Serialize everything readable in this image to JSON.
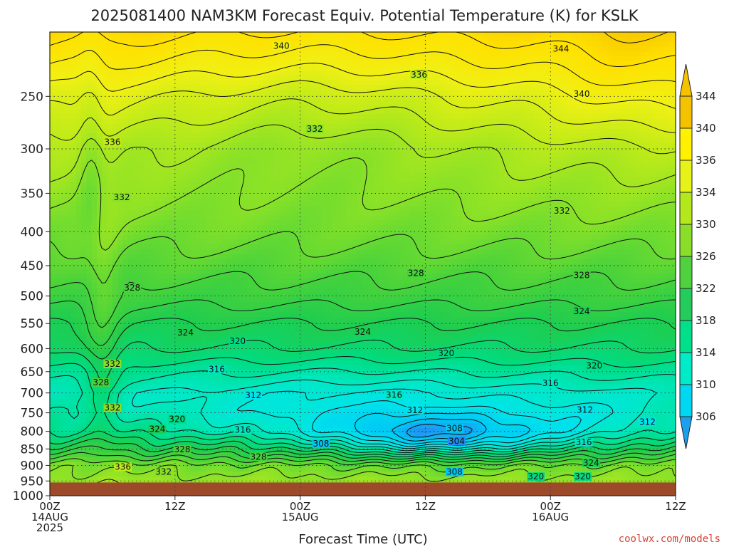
{
  "title": "2025081400 NAM3KM Forecast Equiv. Potential Temperature (K) for KSLK",
  "credit": "coolwx.com/models",
  "chart_data": {
    "type": "heatmap",
    "title": "2025081400 NAM3KM Forecast Equiv. Potential Temperature (K) for KSLK",
    "xlabel": "Forecast Time (UTC)",
    "ylabel": "",
    "x_range_hours": [
      0,
      60
    ],
    "y_range_hPa": [
      200,
      1000
    ],
    "y_scale": "log",
    "grid": true,
    "x_ticks": [
      {
        "hour": 0,
        "lines": [
          "00Z",
          "14AUG",
          "2025"
        ]
      },
      {
        "hour": 12,
        "lines": [
          "12Z"
        ]
      },
      {
        "hour": 24,
        "lines": [
          "00Z",
          "15AUG"
        ]
      },
      {
        "hour": 36,
        "lines": [
          "12Z"
        ]
      },
      {
        "hour": 48,
        "lines": [
          "00Z",
          "16AUG"
        ]
      },
      {
        "hour": 60,
        "lines": [
          "12Z"
        ]
      }
    ],
    "y_ticks": [
      250,
      300,
      350,
      400,
      450,
      500,
      550,
      600,
      650,
      700,
      750,
      800,
      850,
      900,
      950,
      1000
    ],
    "ground_pressure_hPa": 955,
    "colorbar": {
      "labels": [
        306,
        310,
        314,
        318,
        322,
        326,
        330,
        334,
        336,
        340,
        344
      ],
      "colors": [
        "#1ca0ee",
        "#00d7f2",
        "#00ebc7",
        "#00e08a",
        "#24cc5c",
        "#4fd23e",
        "#8ade2a",
        "#b3e81c",
        "#e6f218",
        "#fff100",
        "#f5c200"
      ]
    },
    "contour_labels": [
      {
        "value": "340",
        "hour": 22.2,
        "p": 210
      },
      {
        "value": "344",
        "hour": 49.0,
        "p": 212
      },
      {
        "value": "336",
        "hour": 35.4,
        "p": 232
      },
      {
        "value": "340",
        "hour": 51.0,
        "p": 248
      },
      {
        "value": "332",
        "hour": 25.4,
        "p": 280
      },
      {
        "value": "336",
        "hour": 6.0,
        "p": 293
      },
      {
        "value": "332",
        "hour": 6.9,
        "p": 355
      },
      {
        "value": "332",
        "hour": 49.1,
        "p": 372
      },
      {
        "value": "328",
        "hour": 35.1,
        "p": 462
      },
      {
        "value": "328",
        "hour": 51.0,
        "p": 465
      },
      {
        "value": "328",
        "hour": 7.9,
        "p": 486
      },
      {
        "value": "324",
        "hour": 51.0,
        "p": 527
      },
      {
        "value": "324",
        "hour": 13.0,
        "p": 568
      },
      {
        "value": "324",
        "hour": 30.0,
        "p": 566
      },
      {
        "value": "320",
        "hour": 18.0,
        "p": 585
      },
      {
        "value": "320",
        "hour": 38.0,
        "p": 610
      },
      {
        "value": "332",
        "hour": 6.0,
        "p": 633
      },
      {
        "value": "320",
        "hour": 52.2,
        "p": 637
      },
      {
        "value": "316",
        "hour": 16.0,
        "p": 645
      },
      {
        "value": "328",
        "hour": 4.9,
        "p": 675
      },
      {
        "value": "316",
        "hour": 48.0,
        "p": 677
      },
      {
        "value": "312",
        "hour": 19.5,
        "p": 706
      },
      {
        "value": "316",
        "hour": 33.0,
        "p": 705
      },
      {
        "value": "332",
        "hour": 6.0,
        "p": 737
      },
      {
        "value": "312",
        "hour": 35.0,
        "p": 743
      },
      {
        "value": "312",
        "hour": 51.3,
        "p": 742
      },
      {
        "value": "320",
        "hour": 12.2,
        "p": 767
      },
      {
        "value": "312",
        "hour": 57.3,
        "p": 774
      },
      {
        "value": "324",
        "hour": 10.3,
        "p": 794
      },
      {
        "value": "308",
        "hour": 38.8,
        "p": 792
      },
      {
        "value": "316",
        "hour": 18.5,
        "p": 796
      },
      {
        "value": "304",
        "hour": 39.0,
        "p": 828
      },
      {
        "value": "316",
        "hour": 51.2,
        "p": 831
      },
      {
        "value": "308",
        "hour": 26.0,
        "p": 835
      },
      {
        "value": "328",
        "hour": 12.7,
        "p": 852
      },
      {
        "value": "328",
        "hour": 20.0,
        "p": 874
      },
      {
        "value": "324",
        "hour": 51.9,
        "p": 892
      },
      {
        "value": "336",
        "hour": 7.0,
        "p": 905
      },
      {
        "value": "332",
        "hour": 10.9,
        "p": 921
      },
      {
        "value": "308",
        "hour": 38.8,
        "p": 921
      },
      {
        "value": "320",
        "hour": 46.6,
        "p": 936
      },
      {
        "value": "320",
        "hour": 51.1,
        "p": 936
      }
    ]
  }
}
